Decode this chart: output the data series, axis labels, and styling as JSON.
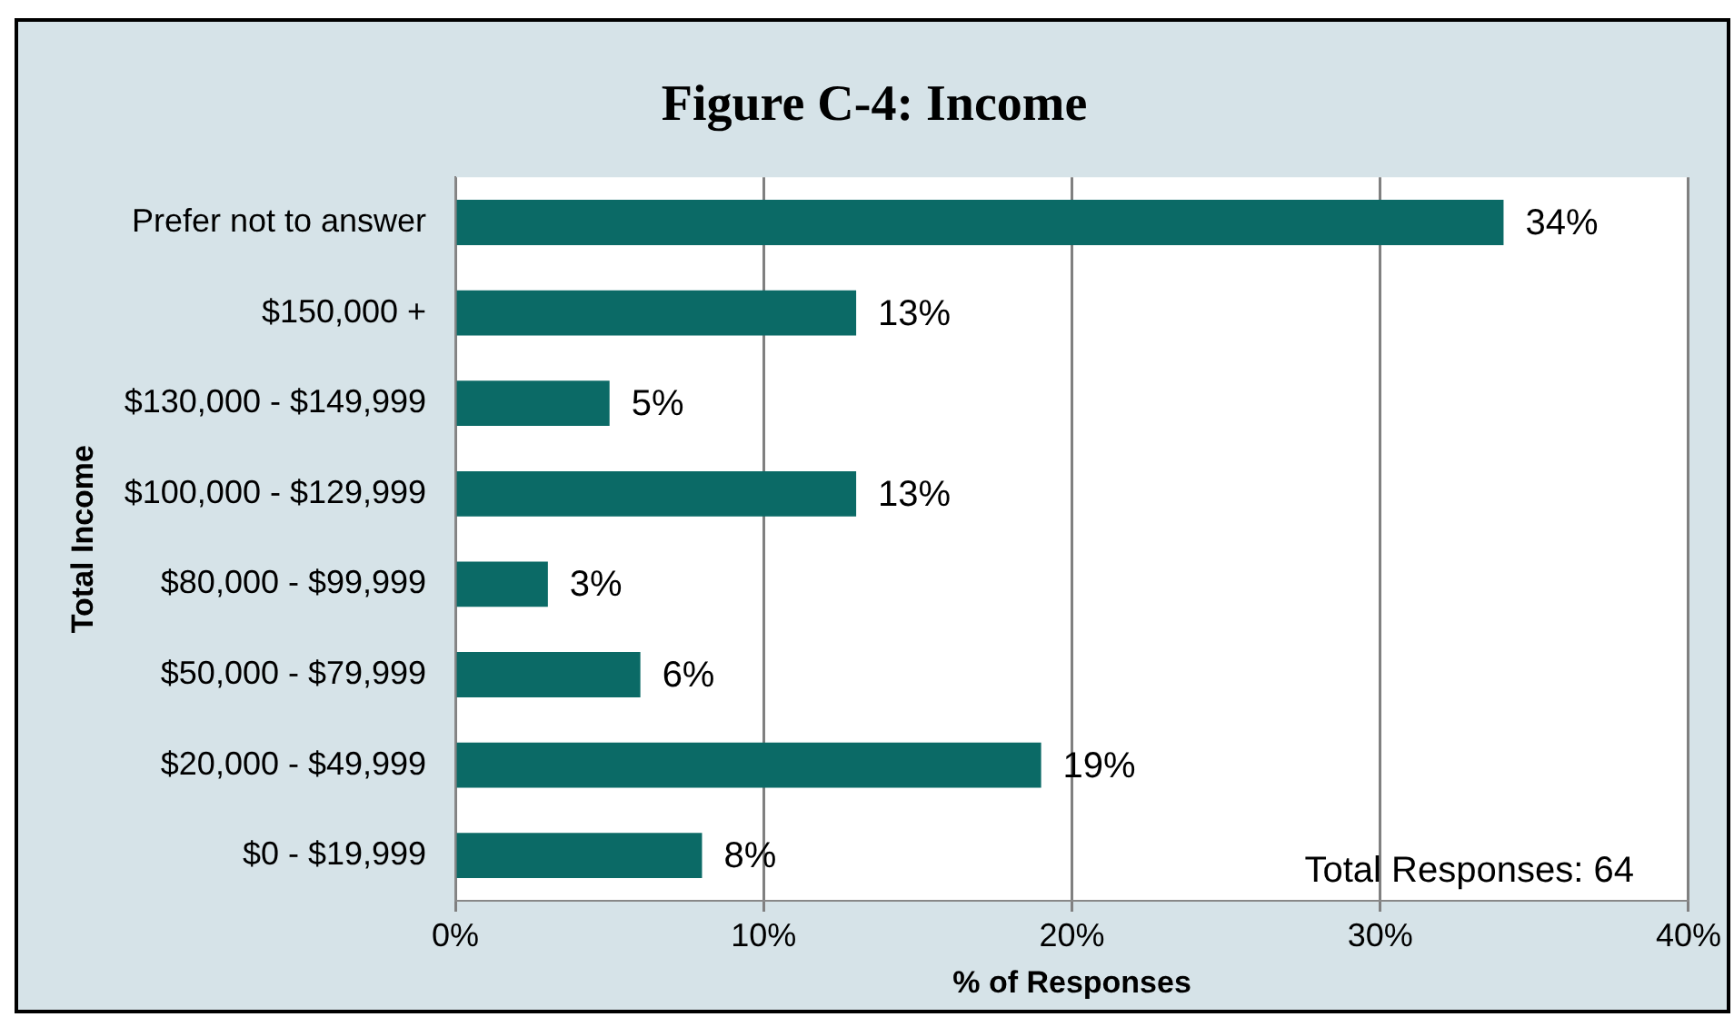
{
  "chart_data": {
    "type": "bar",
    "orientation": "horizontal",
    "title": "Figure C-4: Income",
    "xlabel": "% of Responses",
    "ylabel": "Total Income",
    "categories": [
      "Prefer not to answer",
      "$150,000 +",
      "$130,000 - $149,999",
      "$100,000 - $129,999",
      "$80,000 - $99,999",
      "$50,000 - $79,999",
      "$20,000 - $49,999",
      "$0 - $19,999"
    ],
    "values": [
      34,
      13,
      5,
      13,
      3,
      6,
      19,
      8
    ],
    "value_labels": [
      "34%",
      "13%",
      "5%",
      "13%",
      "3%",
      "6%",
      "19%",
      "8%"
    ],
    "color": "#0b6a66",
    "xlim": [
      0,
      40
    ],
    "xticks": [
      {
        "value": 0,
        "label": "0%"
      },
      {
        "value": 10,
        "label": "10%"
      },
      {
        "value": 20,
        "label": "20%"
      },
      {
        "value": 30,
        "label": "30%"
      },
      {
        "value": 40,
        "label": "40%"
      }
    ],
    "grid": "x",
    "legend": false,
    "annotations": [
      "Total Responses: 64"
    ]
  }
}
